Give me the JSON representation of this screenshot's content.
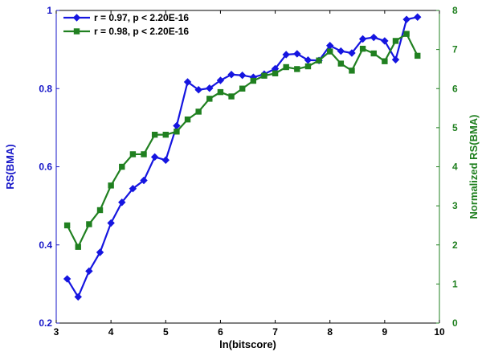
{
  "chart_data": {
    "type": "line",
    "xlabel": "ln(bitscore)",
    "ylabel_left": "RS(BMA)",
    "ylabel_right": "Normalized RS(BMA)",
    "xlim": [
      3,
      10
    ],
    "ylim_left": [
      0.2,
      1
    ],
    "ylim_right": [
      0,
      8
    ],
    "xticks": [
      "3",
      "4",
      "5",
      "6",
      "7",
      "8",
      "9",
      "10"
    ],
    "yticks_left": [
      "0.2",
      "0.4",
      "0.6",
      "0.8",
      "1"
    ],
    "yticks_right": [
      "0",
      "1",
      "2",
      "3",
      "4",
      "5",
      "6",
      "7",
      "8"
    ],
    "grid": false,
    "legend_position": "top-left",
    "colors": {
      "left_axis": "#1515c8",
      "right_axis": "#208020",
      "series1": "#1515e0",
      "series2": "#208020"
    },
    "series": [
      {
        "name": "r = 0.97, p < 2.20E-16",
        "axis": "left",
        "marker": "diamond",
        "x": [
          3.2,
          3.4,
          3.6,
          3.8,
          4.0,
          4.2,
          4.4,
          4.6,
          4.8,
          5.0,
          5.2,
          5.4,
          5.6,
          5.8,
          6.0,
          6.2,
          6.4,
          6.6,
          6.8,
          7.0,
          7.2,
          7.4,
          7.6,
          7.8,
          8.0,
          8.2,
          8.4,
          8.6,
          8.8,
          9.0,
          9.2,
          9.4,
          9.6
        ],
        "y": [
          0.313,
          0.267,
          0.333,
          0.381,
          0.456,
          0.509,
          0.544,
          0.565,
          0.625,
          0.617,
          0.705,
          0.817,
          0.797,
          0.801,
          0.821,
          0.836,
          0.834,
          0.829,
          0.837,
          0.851,
          0.887,
          0.889,
          0.873,
          0.872,
          0.91,
          0.896,
          0.891,
          0.927,
          0.931,
          0.922,
          0.874,
          0.977,
          0.983
        ]
      },
      {
        "name": "r = 0.98, p < 2.20E-16",
        "axis": "right",
        "marker": "square",
        "x": [
          3.2,
          3.4,
          3.6,
          3.8,
          4.0,
          4.2,
          4.4,
          4.6,
          4.8,
          5.0,
          5.2,
          5.4,
          5.6,
          5.8,
          6.0,
          6.2,
          6.4,
          6.6,
          6.8,
          7.0,
          7.2,
          7.4,
          7.6,
          7.8,
          8.0,
          8.2,
          8.4,
          8.6,
          8.8,
          9.0,
          9.2,
          9.4,
          9.6
        ],
        "y": [
          2.5,
          1.95,
          2.53,
          2.89,
          3.52,
          4.0,
          4.32,
          4.32,
          4.82,
          4.82,
          4.9,
          5.21,
          5.41,
          5.74,
          5.91,
          5.8,
          6.0,
          6.2,
          6.33,
          6.39,
          6.55,
          6.5,
          6.57,
          6.72,
          6.95,
          6.64,
          6.46,
          7.02,
          6.9,
          6.7,
          7.22,
          7.4,
          6.84
        ]
      }
    ]
  }
}
